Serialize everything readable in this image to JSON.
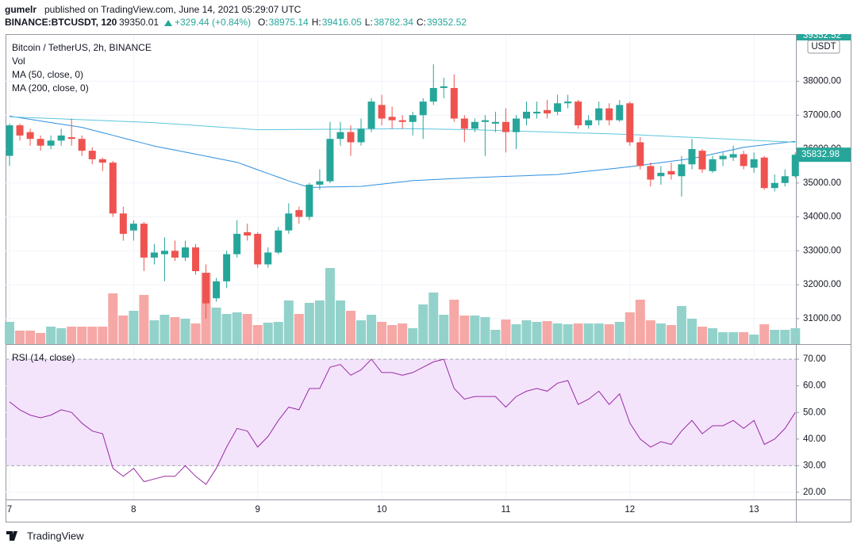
{
  "header": {
    "user": "gumelr",
    "published": "published on TradingView.com, June 14, 2021 05:29:07 UTC",
    "symbol": "BINANCE:BTCUSDT, 120",
    "price": "39350.01",
    "change": "+329.44 (+0.84%)",
    "ohlc": [
      {
        "label": "O:",
        "value": "38975.14"
      },
      {
        "label": "H:",
        "value": "39416.05"
      },
      {
        "label": "L:",
        "value": "38782.34"
      },
      {
        "label": "C:",
        "value": "39352.52"
      }
    ]
  },
  "footer": {
    "brand": "TradingView"
  },
  "chart_data": [
    {
      "type": "candlestick",
      "title": "Bitcoin / TetherUS, 2h, BINANCE",
      "unit": "USDT",
      "categories": [
        "7",
        null,
        null,
        null,
        null,
        null,
        null,
        null,
        null,
        null,
        null,
        null,
        "8",
        null,
        null,
        null,
        null,
        null,
        null,
        null,
        null,
        null,
        null,
        null,
        "9",
        null,
        null,
        null,
        null,
        null,
        null,
        null,
        null,
        null,
        null,
        null,
        "10",
        null,
        null,
        null,
        null,
        null,
        null,
        null,
        null,
        null,
        null,
        null,
        "11",
        null,
        null,
        null,
        null,
        null,
        null,
        null,
        null,
        null,
        null,
        null,
        "12",
        null,
        null,
        null,
        null,
        null,
        null,
        null,
        null,
        null,
        null,
        null,
        "13",
        null,
        null,
        null,
        null
      ],
      "open": [
        35800,
        36700,
        36500,
        36300,
        36100,
        36250,
        36350,
        36300,
        35950,
        35700,
        35600,
        34100,
        33600,
        33800,
        32800,
        32900,
        33000,
        32800,
        33100,
        32350,
        31600,
        32100,
        32900,
        33550,
        33500,
        32600,
        32950,
        33600,
        34200,
        34000,
        34950,
        35050,
        36300,
        36500,
        36200,
        36600,
        37300,
        36950,
        36850,
        36800,
        37000,
        37400,
        37800,
        37800,
        36900,
        36600,
        36800,
        36750,
        36800,
        36500,
        36900,
        37050,
        37150,
        37100,
        37350,
        37400,
        36700,
        36850,
        37200,
        36850,
        37350,
        36200,
        35500,
        35200,
        35350,
        35200,
        35550,
        35950,
        35350,
        35700,
        35750,
        35850,
        35450,
        35750,
        34850,
        35000,
        35200
      ],
      "high": [
        36750,
        36750,
        36600,
        36400,
        36400,
        36600,
        36900,
        36400,
        36050,
        35750,
        35650,
        34300,
        33900,
        33850,
        33200,
        33400,
        33300,
        33300,
        33200,
        32600,
        32200,
        33000,
        33900,
        33800,
        33550,
        33100,
        33700,
        34400,
        34300,
        35000,
        35400,
        36800,
        36800,
        36700,
        36900,
        37500,
        37600,
        37250,
        37000,
        37100,
        37500,
        38500,
        38100,
        38200,
        37000,
        36900,
        37000,
        37100,
        37200,
        37000,
        37400,
        37400,
        37450,
        37600,
        37600,
        37450,
        37000,
        37400,
        37350,
        37450,
        37400,
        36350,
        35600,
        35500,
        35600,
        35800,
        36300,
        36000,
        35800,
        35900,
        36100,
        35950,
        35900,
        35800,
        35250,
        35400,
        35900
      ],
      "low": [
        35500,
        36250,
        36100,
        35950,
        36000,
        36100,
        36100,
        35800,
        35550,
        35350,
        34000,
        33300,
        33300,
        32400,
        32600,
        32100,
        32700,
        32700,
        32300,
        31000,
        31500,
        31900,
        32800,
        33300,
        32500,
        32500,
        32900,
        33500,
        33800,
        33900,
        34800,
        35000,
        36100,
        35800,
        36100,
        36500,
        36700,
        36600,
        36600,
        36400,
        36300,
        37300,
        37500,
        36800,
        36200,
        36500,
        35800,
        36500,
        35900,
        36000,
        36700,
        36900,
        36900,
        37000,
        37200,
        36600,
        36600,
        36700,
        36700,
        36800,
        36100,
        35400,
        34900,
        34950,
        35100,
        34600,
        35400,
        35300,
        35300,
        35500,
        35650,
        35400,
        35300,
        34800,
        34750,
        34900,
        35150
      ],
      "close": [
        36700,
        36400,
        36300,
        36100,
        36250,
        36400,
        36300,
        35950,
        35700,
        35600,
        34100,
        33500,
        33800,
        32800,
        32950,
        33000,
        32800,
        33100,
        32400,
        31450,
        32100,
        32900,
        33500,
        33450,
        32600,
        32950,
        33600,
        34100,
        34000,
        34950,
        35050,
        36300,
        36500,
        36200,
        36600,
        37400,
        36900,
        36850,
        36800,
        37000,
        37400,
        37800,
        37850,
        36900,
        36600,
        36800,
        36850,
        36800,
        36500,
        36900,
        37100,
        37100,
        37050,
        37350,
        37400,
        36700,
        36850,
        37200,
        36850,
        37300,
        36200,
        35500,
        35100,
        35300,
        35250,
        35550,
        36000,
        35400,
        35700,
        35800,
        35850,
        35500,
        35700,
        34850,
        35000,
        35200,
        35832.98
      ],
      "up_color": "#26a69a",
      "down_color": "#ef5350",
      "volume": {
        "name": "Vol",
        "up_color": "#93d2cb",
        "down_color": "#f6a8a6",
        "values": [
          28,
          17,
          17,
          14,
          22,
          20,
          22,
          22,
          22,
          22,
          64,
          36,
          42,
          62,
          30,
          37,
          34,
          32,
          26,
          90,
          46,
          38,
          40,
          38,
          24,
          27,
          28,
          55,
          38,
          52,
          55,
          96,
          55,
          42,
          30,
          37,
          28,
          24,
          26,
          20,
          50,
          65,
          37,
          56,
          36,
          36,
          34,
          18,
          31,
          25,
          30,
          28,
          29,
          26,
          25,
          26,
          26,
          26,
          25,
          28,
          40,
          56,
          30,
          26,
          24,
          48,
          32,
          22,
          20,
          15,
          15,
          15,
          12,
          25,
          18,
          18,
          20
        ]
      },
      "series": [
        {
          "name": "MA (50, close, 0)",
          "color": "#2f8fe0",
          "values": [
            36970,
            36923,
            36876,
            36829,
            36781,
            36734,
            36687,
            36640,
            36561,
            36483,
            36404,
            36326,
            36247,
            36169,
            36090,
            36030,
            35970,
            35910,
            35850,
            35790,
            35730,
            35670,
            35610,
            35500,
            35390,
            35280,
            35170,
            35060,
            34965,
            34870,
            34876,
            34882,
            34888,
            34894,
            34900,
            34934,
            34968,
            35002,
            35036,
            35070,
            35085,
            35100,
            35115,
            35130,
            35145,
            35160,
            35171,
            35183,
            35194,
            35205,
            35216,
            35228,
            35239,
            35250,
            35283,
            35316,
            35349,
            35381,
            35414,
            35447,
            35480,
            35520,
            35560,
            35600,
            35640,
            35680,
            35720,
            35786,
            35852,
            35918,
            35984,
            36050,
            36086,
            36122,
            36158,
            36194,
            36230
          ]
        },
        {
          "name": "MA (200, close, 0)",
          "color": "#5bc6dd",
          "values": [
            36950,
            36938,
            36926,
            36914,
            36902,
            36890,
            36877,
            36865,
            36853,
            36841,
            36829,
            36817,
            36805,
            36793,
            36780,
            36759,
            36738,
            36717,
            36696,
            36675,
            36654,
            36633,
            36612,
            36591,
            36570,
            36572,
            36574,
            36576,
            36578,
            36580,
            36582,
            36584,
            36586,
            36588,
            36590,
            36592,
            36594,
            36596,
            36598,
            36600,
            36595,
            36590,
            36585,
            36580,
            36575,
            36570,
            36560,
            36550,
            36540,
            36530,
            36521,
            36512,
            36503,
            36494,
            36485,
            36476,
            36467,
            36458,
            36449,
            36440,
            36430,
            36416,
            36401,
            36387,
            36373,
            36358,
            36344,
            36330,
            36315,
            36301,
            36287,
            36272,
            36258,
            36244,
            36229,
            36215,
            36200
          ]
        }
      ],
      "ylim": [
        30250,
        39390
      ],
      "yticks": [
        {
          "value": 31000,
          "label": "31000.00"
        },
        {
          "value": 32000,
          "label": "32000.00"
        },
        {
          "value": 33000,
          "label": "33000.00"
        },
        {
          "value": 34000,
          "label": "34000.00"
        },
        {
          "value": 35000,
          "label": "35000.00"
        },
        {
          "value": 36000,
          "label": "36000.00"
        },
        {
          "value": 37000,
          "label": "37000.00"
        },
        {
          "value": 38000,
          "label": "38000.00"
        }
      ],
      "grid": true
    },
    {
      "type": "line",
      "title": "RSI (14, close)",
      "color": "#9b2ba6",
      "values": [
        54,
        51,
        49,
        48,
        49,
        51,
        50,
        46,
        43,
        42,
        29,
        26,
        29,
        24,
        25,
        26,
        26,
        30,
        26,
        23,
        29,
        37,
        44,
        43,
        37,
        41,
        47,
        52,
        51,
        59,
        59,
        67,
        68,
        64,
        66,
        70,
        65,
        65,
        64,
        65,
        67,
        69,
        70,
        59,
        55,
        56,
        56,
        56,
        52,
        56,
        58,
        59,
        58,
        61,
        62,
        53,
        55,
        58,
        53,
        57,
        46,
        40,
        37,
        39,
        38,
        43,
        47,
        42,
        45,
        45,
        47,
        44,
        47,
        38,
        40,
        44,
        50
      ],
      "band": [
        30,
        70
      ],
      "band_color": "#f3e4fb",
      "ylim": [
        17.3,
        75.4
      ],
      "yticks": [
        {
          "value": 20,
          "label": "20.00"
        },
        {
          "value": 30,
          "label": "30.00"
        },
        {
          "value": 40,
          "label": "40.00"
        },
        {
          "value": 50,
          "label": "50.00"
        },
        {
          "value": 60,
          "label": "60.00"
        },
        {
          "value": 70,
          "label": "70.00"
        }
      ],
      "grid": true
    }
  ]
}
